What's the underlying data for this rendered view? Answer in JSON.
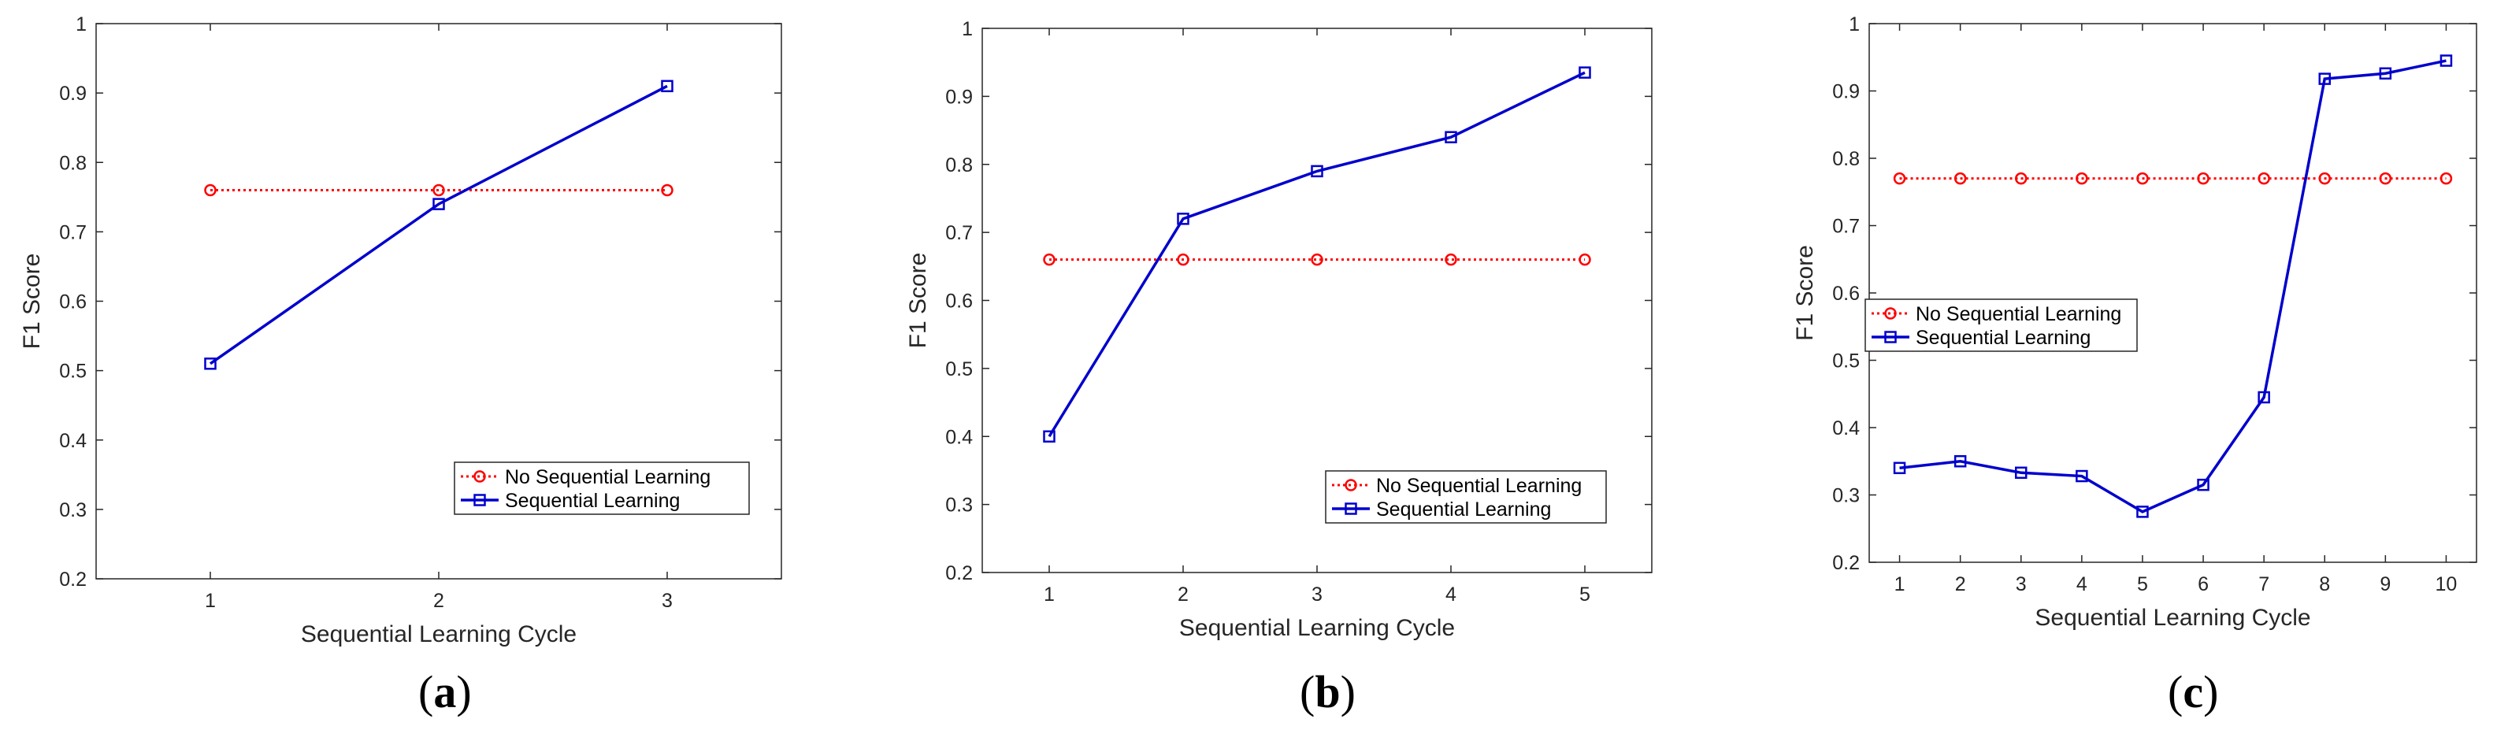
{
  "colors": {
    "no_seq": "#ff0000",
    "seq": "#0000cd",
    "axis": "#262626"
  },
  "chart_data": [
    {
      "type": "line",
      "panel_label": "a",
      "xlabel": "Sequential Learning Cycle",
      "ylabel": "F1 Score",
      "xlim": [
        0.5,
        3.5
      ],
      "ylim": [
        0.2,
        1
      ],
      "x_ticks": [
        "1",
        "2",
        "3"
      ],
      "y_ticks": [
        "0.2",
        "0.3",
        "0.4",
        "0.5",
        "0.6",
        "0.7",
        "0.8",
        "0.9",
        "1"
      ],
      "legend_position": "bottom-right",
      "series": [
        {
          "name": "No Sequential Learning",
          "marker": "circle",
          "style": "dotted",
          "x": [
            1,
            2,
            3
          ],
          "values": [
            0.76,
            0.76,
            0.76
          ]
        },
        {
          "name": "Sequential Learning",
          "marker": "square",
          "style": "solid",
          "x": [
            1,
            2,
            3
          ],
          "values": [
            0.51,
            0.74,
            0.91
          ]
        }
      ]
    },
    {
      "type": "line",
      "panel_label": "b",
      "xlabel": "Sequential Learning Cycle",
      "ylabel": "F1 Score",
      "xlim": [
        0.5,
        5.5
      ],
      "ylim": [
        0.2,
        1
      ],
      "x_ticks": [
        "1",
        "2",
        "3",
        "4",
        "5"
      ],
      "y_ticks": [
        "0.2",
        "0.3",
        "0.4",
        "0.5",
        "0.6",
        "0.7",
        "0.8",
        "0.9",
        "1"
      ],
      "legend_position": "bottom-right",
      "series": [
        {
          "name": "No Sequential Learning",
          "marker": "circle",
          "style": "dotted",
          "x": [
            1,
            2,
            3,
            4,
            5
          ],
          "values": [
            0.66,
            0.66,
            0.66,
            0.66,
            0.66
          ]
        },
        {
          "name": "Sequential Learning",
          "marker": "square",
          "style": "solid",
          "x": [
            1,
            2,
            3,
            4,
            5
          ],
          "values": [
            0.4,
            0.72,
            0.79,
            0.84,
            0.935
          ]
        }
      ]
    },
    {
      "type": "line",
      "panel_label": "c",
      "xlabel": "Sequential Learning Cycle",
      "ylabel": "F1 Score",
      "xlim": [
        0.5,
        10.5
      ],
      "ylim": [
        0.2,
        1
      ],
      "x_ticks": [
        "1",
        "2",
        "3",
        "4",
        "5",
        "6",
        "7",
        "8",
        "9",
        "10"
      ],
      "y_ticks": [
        "0.2",
        "0.3",
        "0.4",
        "0.5",
        "0.6",
        "0.7",
        "0.8",
        "0.9",
        "1"
      ],
      "legend_position": "middle-left",
      "series": [
        {
          "name": "No Sequential Learning",
          "marker": "circle",
          "style": "dotted",
          "x": [
            1,
            2,
            3,
            4,
            5,
            6,
            7,
            8,
            9,
            10
          ],
          "values": [
            0.77,
            0.77,
            0.77,
            0.77,
            0.77,
            0.77,
            0.77,
            0.77,
            0.77,
            0.77
          ]
        },
        {
          "name": "Sequential Learning",
          "marker": "square",
          "style": "solid",
          "x": [
            1,
            2,
            3,
            4,
            5,
            6,
            7,
            8,
            9,
            10
          ],
          "values": [
            0.34,
            0.35,
            0.333,
            0.328,
            0.275,
            0.315,
            0.445,
            0.918,
            0.926,
            0.945
          ]
        }
      ]
    }
  ]
}
